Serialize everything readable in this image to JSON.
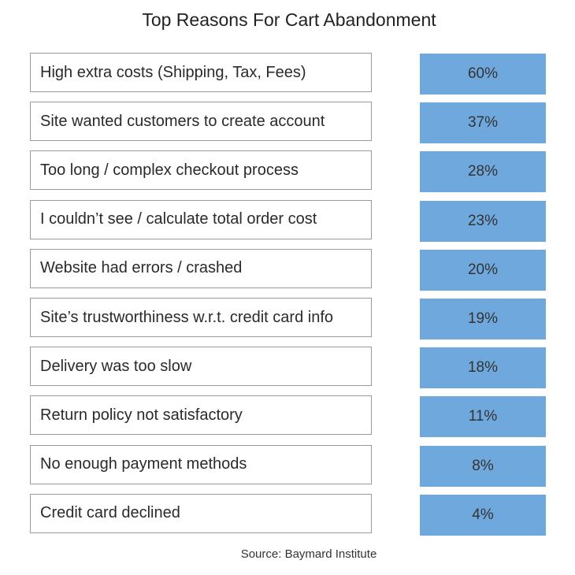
{
  "title": "Top Reasons For Cart Abandonment",
  "rows": [
    {
      "reason": "High extra costs (Shipping, Tax, Fees)",
      "value": "60%"
    },
    {
      "reason": "Site wanted customers to create account",
      "value": "37%"
    },
    {
      "reason": "Too long / complex checkout process",
      "value": "28%"
    },
    {
      "reason": "I couldn’t see / calculate total order cost",
      "value": "23%"
    },
    {
      "reason": "Website had errors / crashed",
      "value": "20%"
    },
    {
      "reason": "Site’s trustworthiness w.r.t. credit card info",
      "value": "19%"
    },
    {
      "reason": "Delivery was too slow",
      "value": "18%"
    },
    {
      "reason": "Return policy not satisfactory",
      "value": "11%"
    },
    {
      "reason": "No enough payment methods",
      "value": "8%"
    },
    {
      "reason": "Credit card declined",
      "value": "4%"
    }
  ],
  "source": "Source: Baymard Institute"
}
